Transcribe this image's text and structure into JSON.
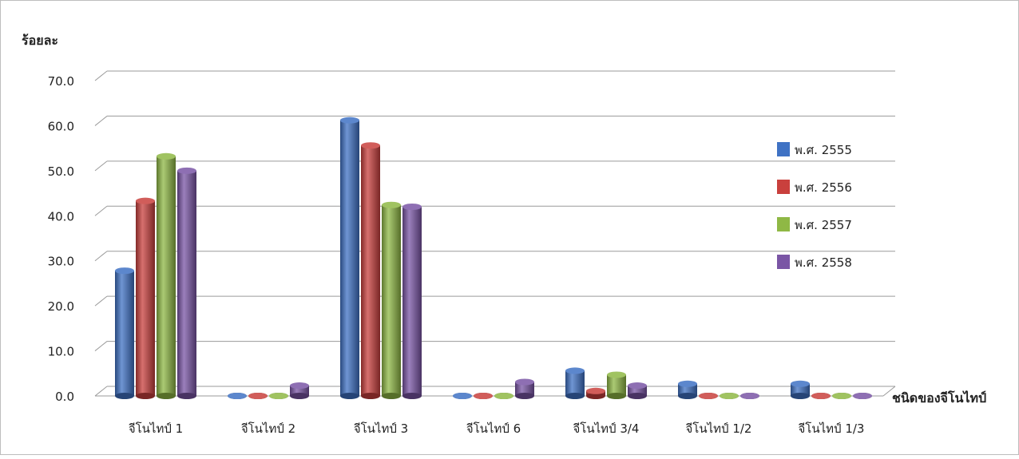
{
  "chart_data": {
    "type": "bar",
    "ylabel": "ร้อยละ",
    "xlabel": "ชนิดของจีโนไทป์",
    "ylim": [
      0,
      70
    ],
    "yticks": [
      "0.0",
      "10.0",
      "20.0",
      "30.0",
      "40.0",
      "50.0",
      "60.0",
      "70.0"
    ],
    "grid": true,
    "legend_position": "right",
    "categories": [
      "จีโนไทป์ 1",
      "จีโนไทป์ 2",
      "จีโนไทป์ 3",
      "จีโนไทป์ 6",
      "จีโนไทป์ 3/4",
      "จีโนไทป์ 1/2",
      "จีโนไทป์ 1/3"
    ],
    "series": [
      {
        "name": "พ.ศ. 2555",
        "color": "#3f72c4",
        "values": [
          27.8,
          0,
          61.2,
          0,
          5.6,
          2.7,
          2.7
        ]
      },
      {
        "name": "พ.ศ. 2556",
        "color": "#c9403d",
        "values": [
          43.3,
          0,
          55.6,
          0,
          1.1,
          0,
          0
        ]
      },
      {
        "name": "พ.ศ. 2557",
        "color": "#8fb845",
        "values": [
          53.2,
          0,
          42.4,
          0,
          4.7,
          0,
          0
        ]
      },
      {
        "name": "พ.ศ. 2558",
        "color": "#7a55a5",
        "values": [
          50.0,
          2.3,
          42.0,
          3.1,
          2.3,
          0,
          0
        ]
      }
    ]
  }
}
